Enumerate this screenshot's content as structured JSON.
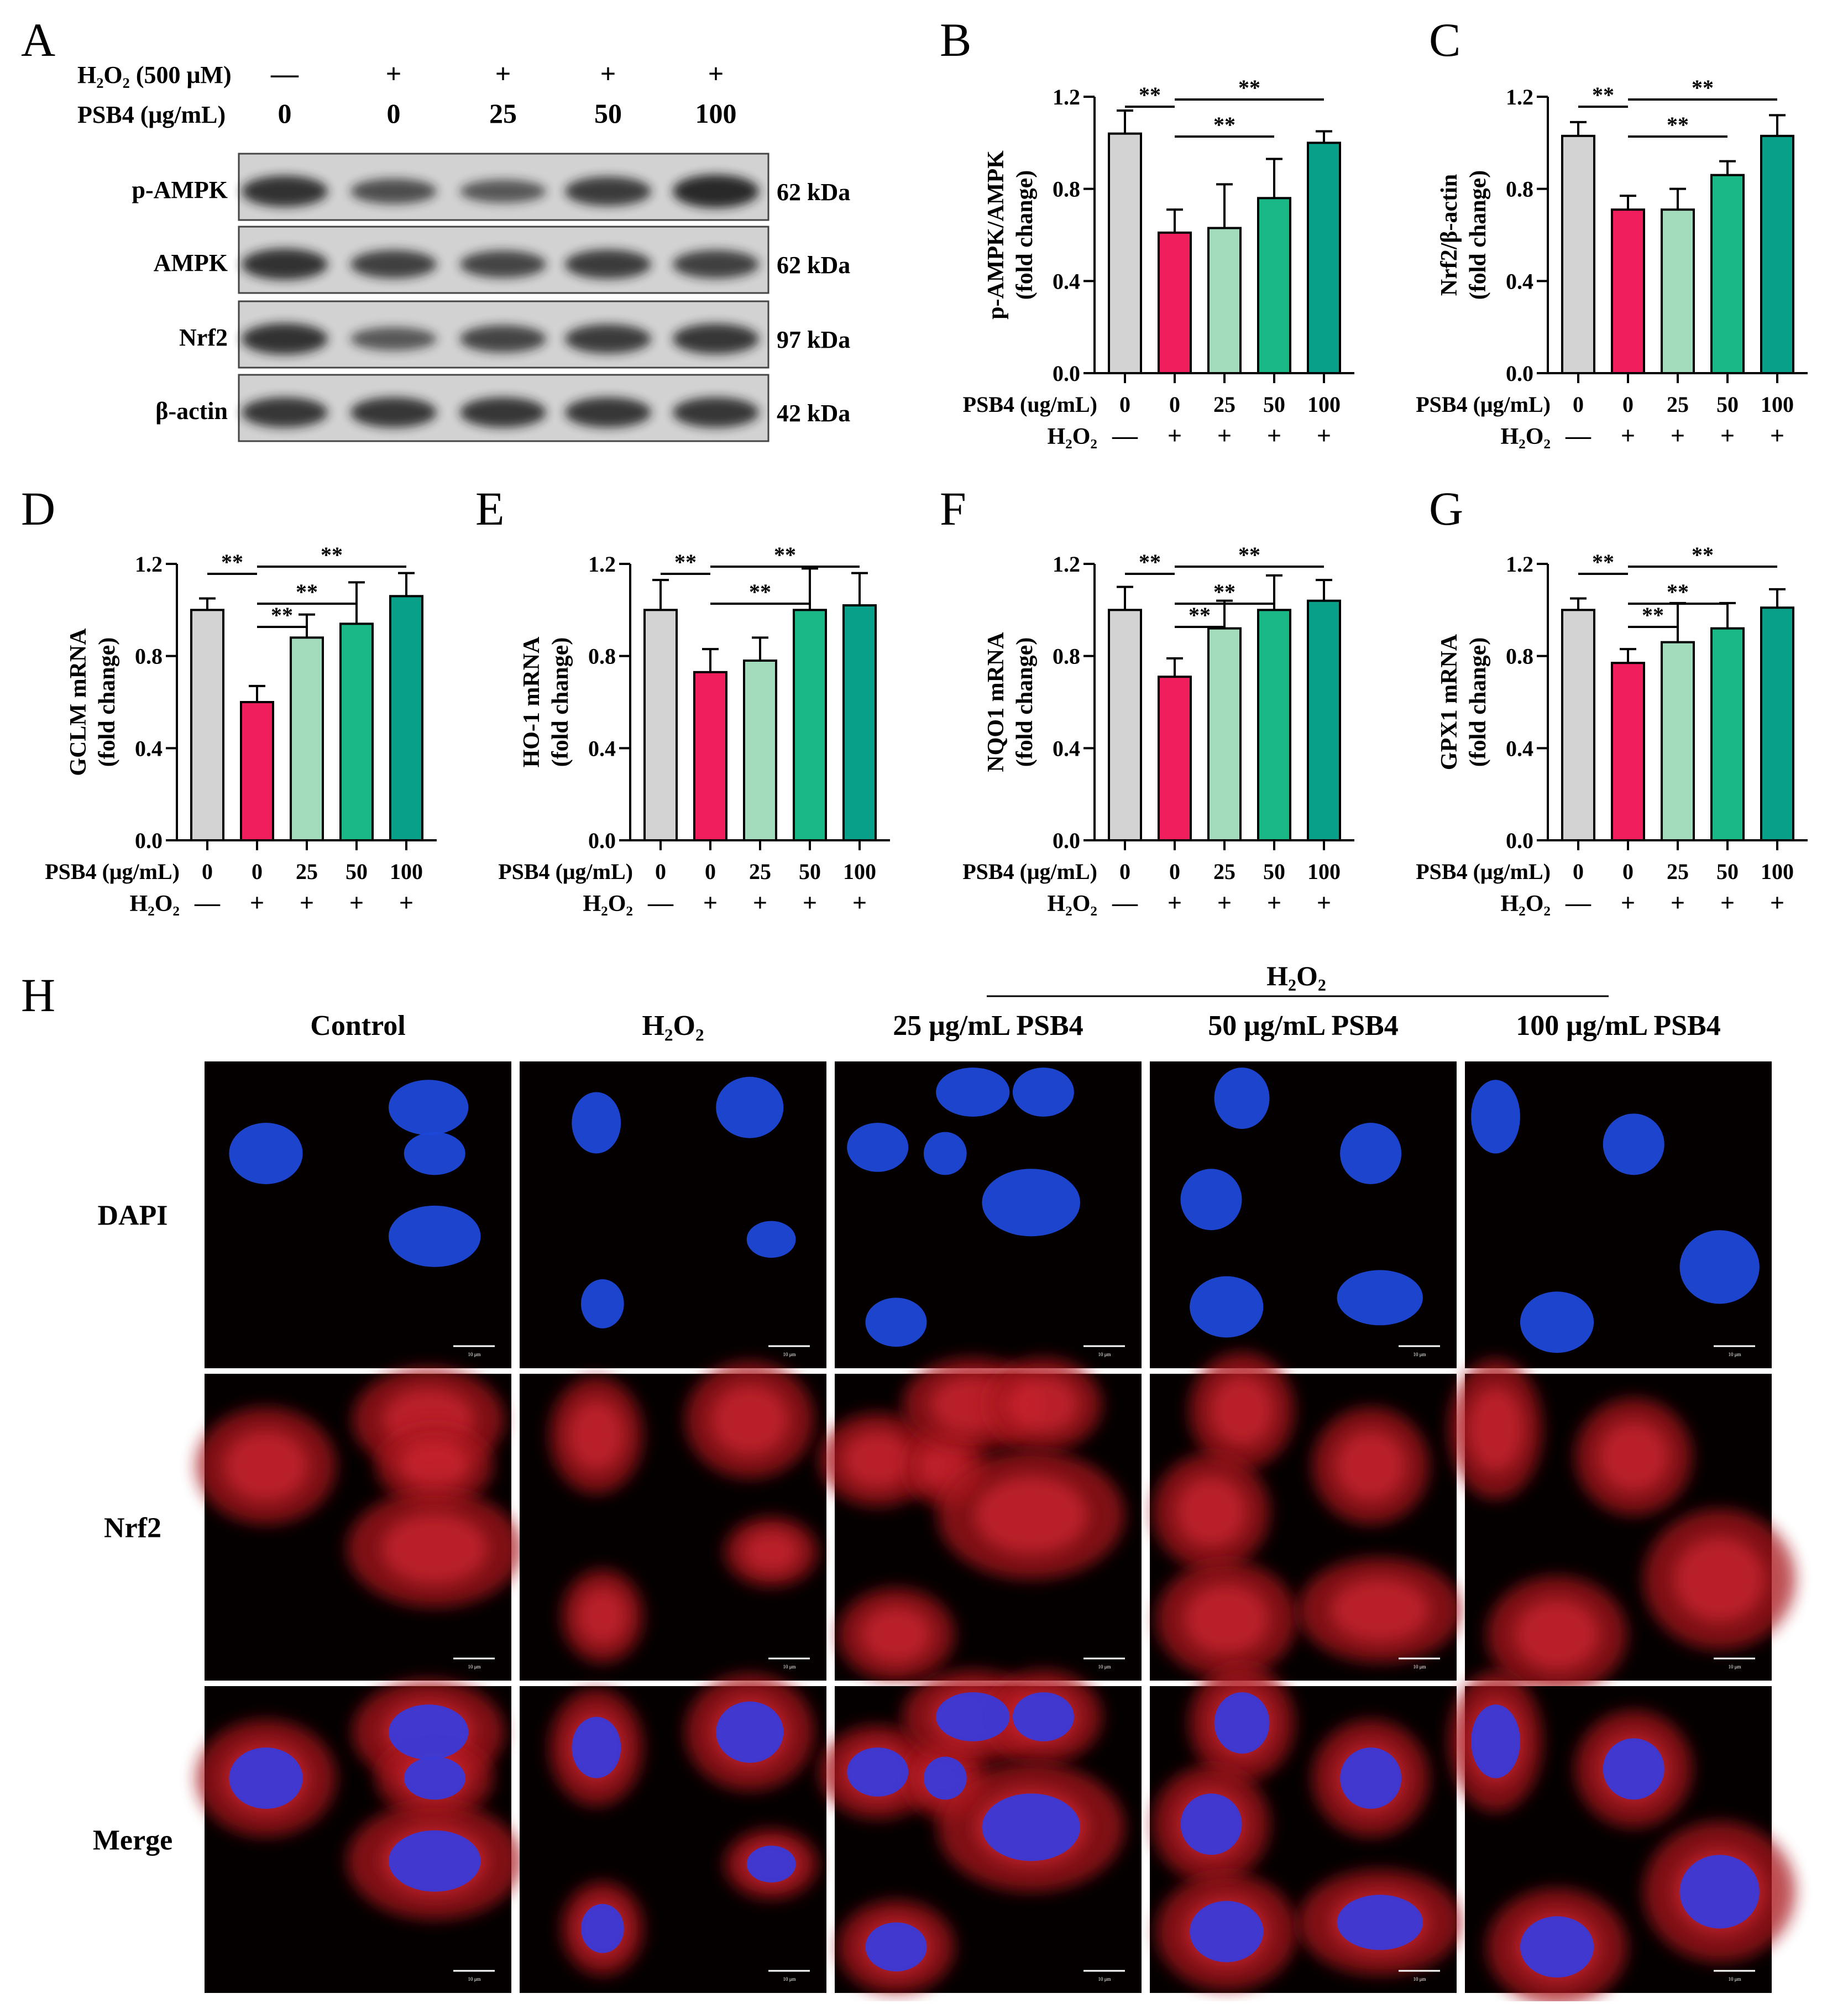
{
  "panel_letters": [
    "A",
    "B",
    "C",
    "D",
    "E",
    "F",
    "G",
    "H"
  ],
  "western_blot": {
    "treatment_rows": [
      {
        "label": "H₂O₂ (500 μM)",
        "values": [
          "—",
          "+",
          "+",
          "+",
          "+"
        ]
      },
      {
        "label": "PSB4 (μg/mL)",
        "values": [
          "0",
          "0",
          "25",
          "50",
          "100"
        ]
      }
    ],
    "bands": [
      {
        "name": "p-AMPK",
        "size": "62 kDa",
        "intensity": [
          0.85,
          0.55,
          0.45,
          0.75,
          0.95
        ]
      },
      {
        "name": "AMPK",
        "size": "62 kDa",
        "intensity": [
          0.85,
          0.7,
          0.65,
          0.75,
          0.7
        ]
      },
      {
        "name": "Nrf2",
        "size": "97 kDa",
        "intensity": [
          0.85,
          0.45,
          0.65,
          0.75,
          0.8
        ]
      },
      {
        "name": "β-actin",
        "size": "42 kDa",
        "intensity": [
          0.8,
          0.8,
          0.8,
          0.8,
          0.8
        ]
      }
    ]
  },
  "colors": {
    "control": "#d3d3d3",
    "h2o2": "#f01e5c",
    "psb4_25": "#a2dcbd",
    "psb4_50": "#1bb887",
    "psb4_100": "#08a088"
  },
  "x_axis": {
    "psb4_label": "PSB4 (μg/mL)",
    "psb4_label_b": "PSB4 (ug/mL)",
    "psb4_values": [
      "0",
      "0",
      "25",
      "50",
      "100"
    ],
    "h2o2_label": "H₂O₂",
    "h2o2_values": [
      "—",
      "+",
      "+",
      "+",
      "+"
    ]
  },
  "chart_data": [
    {
      "panel": "B",
      "type": "bar",
      "ylabel": "p-AMPK/AMPK",
      "ylabel2": "(fold change)",
      "ylim": [
        0,
        1.2
      ],
      "yticks": [
        "0.0",
        "0.4",
        "0.8",
        "1.2"
      ],
      "categories": [
        "0",
        "0",
        "25",
        "50",
        "100"
      ],
      "values": [
        1.04,
        0.61,
        0.63,
        0.76,
        1.0
      ],
      "errors": [
        0.1,
        0.1,
        0.19,
        0.17,
        0.05
      ],
      "significance": [
        {
          "from": 0,
          "to": 1,
          "label": "**"
        },
        {
          "from": 1,
          "to": 3,
          "label": "**"
        },
        {
          "from": 1,
          "to": 4,
          "label": "**"
        }
      ]
    },
    {
      "panel": "C",
      "type": "bar",
      "ylabel": "Nrf2/β-actin",
      "ylabel2": "(fold change)",
      "ylim": [
        0,
        1.2
      ],
      "yticks": [
        "0.0",
        "0.4",
        "0.8",
        "1.2"
      ],
      "categories": [
        "0",
        "0",
        "25",
        "50",
        "100"
      ],
      "values": [
        1.03,
        0.71,
        0.71,
        0.86,
        1.03
      ],
      "errors": [
        0.06,
        0.06,
        0.09,
        0.06,
        0.09
      ],
      "significance": [
        {
          "from": 0,
          "to": 1,
          "label": "**"
        },
        {
          "from": 1,
          "to": 3,
          "label": "**"
        },
        {
          "from": 1,
          "to": 4,
          "label": "**"
        }
      ]
    },
    {
      "panel": "D",
      "type": "bar",
      "ylabel": "GCLM mRNA",
      "ylabel2": "(fold change)",
      "ylim": [
        0,
        1.2
      ],
      "yticks": [
        "0.0",
        "0.4",
        "0.8",
        "1.2"
      ],
      "categories": [
        "0",
        "0",
        "25",
        "50",
        "100"
      ],
      "values": [
        1.0,
        0.6,
        0.88,
        0.94,
        1.06
      ],
      "errors": [
        0.05,
        0.07,
        0.1,
        0.18,
        0.1
      ],
      "significance": [
        {
          "from": 0,
          "to": 1,
          "label": "**"
        },
        {
          "from": 1,
          "to": 2,
          "label": "**"
        },
        {
          "from": 1,
          "to": 3,
          "label": "**"
        },
        {
          "from": 1,
          "to": 4,
          "label": "**"
        }
      ]
    },
    {
      "panel": "E",
      "type": "bar",
      "ylabel": "HO-1 mRNA",
      "ylabel2": "(fold change)",
      "ylim": [
        0,
        1.2
      ],
      "yticks": [
        "0.0",
        "0.4",
        "0.8",
        "1.2"
      ],
      "categories": [
        "0",
        "0",
        "25",
        "50",
        "100"
      ],
      "values": [
        1.0,
        0.73,
        0.78,
        1.0,
        1.02
      ],
      "errors": [
        0.13,
        0.1,
        0.1,
        0.18,
        0.14
      ],
      "significance": [
        {
          "from": 0,
          "to": 1,
          "label": "**"
        },
        {
          "from": 1,
          "to": 3,
          "label": "**"
        },
        {
          "from": 1,
          "to": 4,
          "label": "**"
        }
      ]
    },
    {
      "panel": "F",
      "type": "bar",
      "ylabel": "NQO1 mRNA",
      "ylabel2": "(fold change)",
      "ylim": [
        0,
        1.2
      ],
      "yticks": [
        "0.0",
        "0.4",
        "0.8",
        "1.2"
      ],
      "categories": [
        "0",
        "0",
        "25",
        "50",
        "100"
      ],
      "values": [
        1.0,
        0.71,
        0.92,
        1.0,
        1.04
      ],
      "errors": [
        0.1,
        0.08,
        0.12,
        0.15,
        0.09
      ],
      "significance": [
        {
          "from": 0,
          "to": 1,
          "label": "**"
        },
        {
          "from": 1,
          "to": 2,
          "label": "**"
        },
        {
          "from": 1,
          "to": 3,
          "label": "**"
        },
        {
          "from": 1,
          "to": 4,
          "label": "**"
        }
      ]
    },
    {
      "panel": "G",
      "type": "bar",
      "ylabel": "GPX1 mRNA",
      "ylabel2": "(fold change)",
      "ylim": [
        0,
        1.2
      ],
      "yticks": [
        "0.0",
        "0.4",
        "0.8",
        "1.2"
      ],
      "categories": [
        "0",
        "0",
        "25",
        "50",
        "100"
      ],
      "values": [
        1.0,
        0.77,
        0.86,
        0.92,
        1.01
      ],
      "errors": [
        0.05,
        0.06,
        0.17,
        0.11,
        0.08
      ],
      "significance": [
        {
          "from": 0,
          "to": 1,
          "label": "**"
        },
        {
          "from": 1,
          "to": 2,
          "label": "**"
        },
        {
          "from": 1,
          "to": 3,
          "label": "**"
        },
        {
          "from": 1,
          "to": 4,
          "label": "**"
        }
      ]
    }
  ],
  "immunofluorescence": {
    "group_label": "H₂O₂",
    "columns": [
      "Control",
      "H₂O₂",
      "25 μg/mL PSB4",
      "50 μg/mL PSB4",
      "100 μg/mL PSB4"
    ],
    "rows": [
      "DAPI",
      "Nrf2",
      "Merge"
    ],
    "scale_bar_label": "10 μm"
  }
}
